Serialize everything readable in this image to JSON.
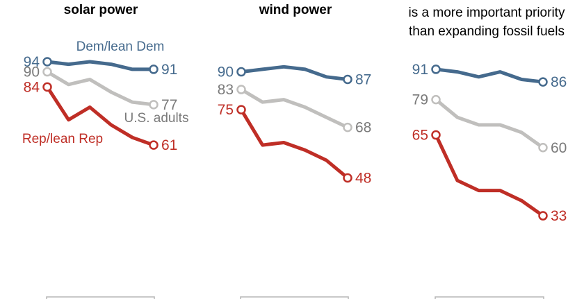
{
  "colors": {
    "dem": "#456a8d",
    "adults": "#c0bfbd",
    "adults_label": "#7a7a7a",
    "rep": "#bf2e26",
    "axis": "#b5b5b5"
  },
  "chart_data": [
    {
      "type": "line",
      "title": "solar power",
      "x": [
        1,
        2,
        3,
        4,
        5,
        6
      ],
      "ylim": [
        30,
        95
      ],
      "series": [
        {
          "name": "Dem/lean Dem",
          "key": "dem",
          "values": [
            94,
            93,
            94,
            93,
            91,
            91
          ],
          "start_label": "94",
          "end_label": "91"
        },
        {
          "name": "U.S. adults",
          "key": "adults",
          "values": [
            90,
            85,
            87,
            82,
            78,
            77
          ],
          "start_label": "90",
          "end_label": "77"
        },
        {
          "name": "Rep/lean Rep",
          "key": "rep",
          "values": [
            84,
            71,
            76,
            69,
            64,
            61
          ],
          "start_label": "84",
          "end_label": "61"
        }
      ],
      "legend": [
        {
          "text": "Dem/lean Dem",
          "key": "dem"
        },
        {
          "text": "U.S. adults",
          "key": "adults"
        },
        {
          "text": "Rep/lean Rep",
          "key": "rep"
        }
      ]
    },
    {
      "type": "line",
      "title": "wind power",
      "x": [
        1,
        2,
        3,
        4,
        5,
        6
      ],
      "ylim": [
        30,
        95
      ],
      "series": [
        {
          "name": "Dem/lean Dem",
          "key": "dem",
          "values": [
            90,
            91,
            92,
            91,
            88,
            87
          ],
          "start_label": "90",
          "end_label": "87"
        },
        {
          "name": "U.S. adults",
          "key": "adults",
          "values": [
            83,
            78,
            79,
            76,
            72,
            68
          ],
          "start_label": "83",
          "end_label": "68"
        },
        {
          "name": "Rep/lean Rep",
          "key": "rep",
          "values": [
            75,
            61,
            62,
            59,
            55,
            48
          ],
          "start_label": "75",
          "end_label": "48"
        }
      ]
    },
    {
      "type": "line",
      "title": "is a more important priority than expanding fossil fuels",
      "title_lines": [
        "is a more important priority",
        "than expanding fossil fuels"
      ],
      "x": [
        1,
        2,
        3,
        4,
        5,
        6
      ],
      "ylim": [
        30,
        95
      ],
      "series": [
        {
          "name": "Dem/lean Dem",
          "key": "dem",
          "values": [
            91,
            90,
            88,
            90,
            87,
            86
          ],
          "start_label": "91",
          "end_label": "86"
        },
        {
          "name": "U.S. adults",
          "key": "adults",
          "values": [
            79,
            72,
            69,
            69,
            66,
            60
          ],
          "start_label": "79",
          "end_label": "60"
        },
        {
          "name": "Rep/lean Rep",
          "key": "rep",
          "values": [
            65,
            47,
            43,
            43,
            39,
            33
          ],
          "start_label": "65",
          "end_label": "33"
        }
      ]
    }
  ]
}
